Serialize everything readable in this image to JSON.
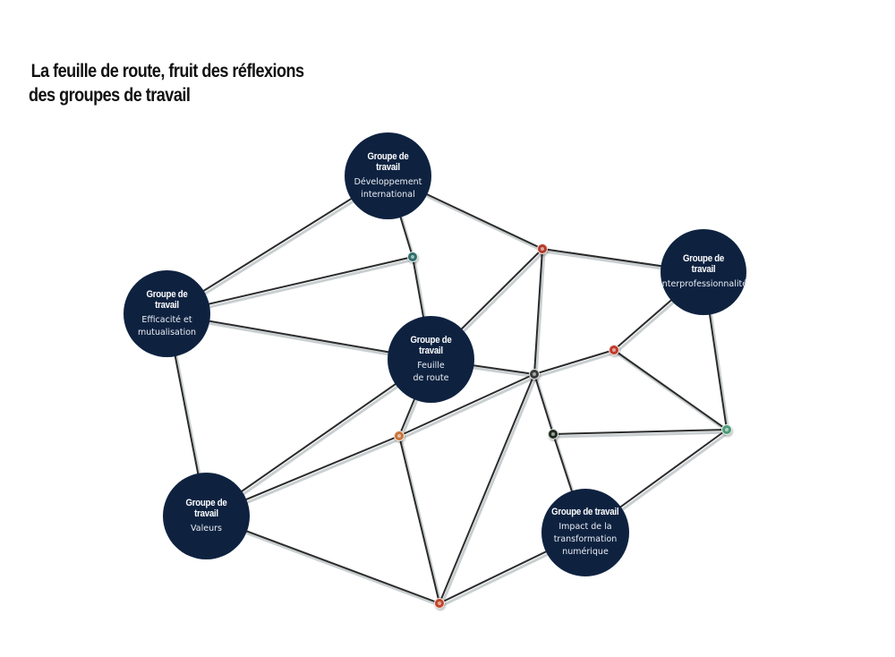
{
  "title": {
    "line1": "La feuille de route, fruit des réflexions",
    "line2": "des groupes de travail"
  },
  "nodes": [
    {
      "id": "developpement",
      "kicker": "Groupe de travail",
      "label": "Développement\ninternational"
    },
    {
      "id": "interpro",
      "kicker": "Groupe de travail",
      "label": "Interprofessionnalité"
    },
    {
      "id": "efficacite",
      "kicker": "Groupe de travail",
      "label": "Efficacité et\nmutualisation"
    },
    {
      "id": "feuille",
      "kicker": "Groupe de travail",
      "label": "Feuille\nde route"
    },
    {
      "id": "valeurs",
      "kicker": "Groupe de travail",
      "label": "Valeurs"
    },
    {
      "id": "impact",
      "kicker": "Groupe de travail",
      "label": "Impact de la\ntransformation\nnumérique"
    }
  ],
  "connectors": [
    {
      "id": "j1",
      "icon": "teal-network-dot",
      "color": "#2f6f6a"
    },
    {
      "id": "j2",
      "icon": "red-network-dot",
      "color": "#b23a2a"
    },
    {
      "id": "j3",
      "icon": "red-network-dot",
      "color": "#c0392b"
    },
    {
      "id": "j4",
      "icon": "dark-network-dot",
      "color": "#3a3a3a"
    },
    {
      "id": "j5",
      "icon": "orange-network-dot",
      "color": "#c8743a"
    },
    {
      "id": "j6",
      "icon": "black-network-dot",
      "color": "#1f2a1f"
    },
    {
      "id": "j7",
      "icon": "green-network-dot",
      "color": "#4e9a77"
    },
    {
      "id": "j8",
      "icon": "red-network-dot",
      "color": "#c0462c"
    }
  ],
  "edges": [
    [
      "developpement",
      "efficacite"
    ],
    [
      "developpement",
      "j1"
    ],
    [
      "developpement",
      "j2"
    ],
    [
      "efficacite",
      "j1"
    ],
    [
      "efficacite",
      "feuille"
    ],
    [
      "efficacite",
      "valeurs"
    ],
    [
      "j1",
      "feuille"
    ],
    [
      "j2",
      "interpro"
    ],
    [
      "j2",
      "feuille"
    ],
    [
      "j2",
      "j4"
    ],
    [
      "interpro",
      "j3"
    ],
    [
      "interpro",
      "j7"
    ],
    [
      "feuille",
      "j4"
    ],
    [
      "feuille",
      "valeurs"
    ],
    [
      "feuille",
      "j5"
    ],
    [
      "j3",
      "j4"
    ],
    [
      "j3",
      "j7"
    ],
    [
      "j4",
      "j5"
    ],
    [
      "j4",
      "j8"
    ],
    [
      "j4",
      "j6"
    ],
    [
      "j5",
      "valeurs"
    ],
    [
      "j5",
      "j8"
    ],
    [
      "j6",
      "j7"
    ],
    [
      "j6",
      "impact"
    ],
    [
      "j7",
      "impact"
    ],
    [
      "valeurs",
      "j8"
    ],
    [
      "j8",
      "impact"
    ]
  ],
  "colors": {
    "node_fill": "#0e2240",
    "edge": "#2b2b2b",
    "edge_shadow": "#c9cfd1"
  }
}
